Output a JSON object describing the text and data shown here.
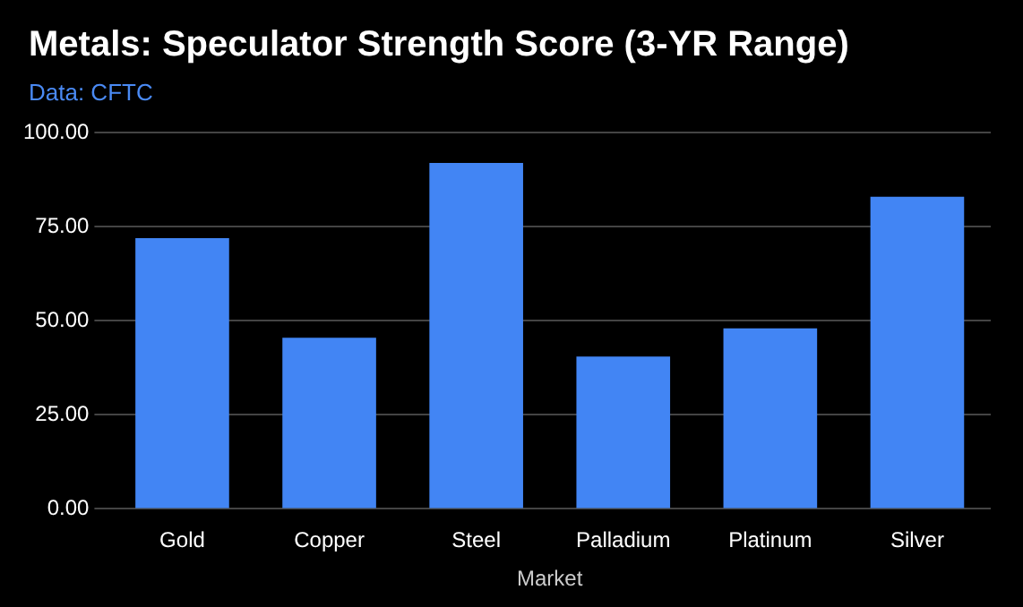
{
  "chart_data": {
    "type": "bar",
    "title": "Metals: Speculator Strength Score (3-YR Range)",
    "subtitle": "Data: CFTC",
    "xlabel": "Market",
    "categories": [
      "Gold",
      "Copper",
      "Steel",
      "Palladium",
      "Platinum",
      "Silver"
    ],
    "series": [
      {
        "color": "#4285f4",
        "values": [
          72,
          45.5,
          92,
          40.5,
          48,
          83
        ]
      }
    ],
    "ylim": [
      0,
      100
    ],
    "yticks": [
      {
        "value": 0,
        "label": "0.00"
      },
      {
        "value": 25,
        "label": "25.00"
      },
      {
        "value": 50,
        "label": "50.00"
      },
      {
        "value": 75,
        "label": "75.00"
      },
      {
        "value": 100,
        "label": "100.00"
      }
    ],
    "grid": "y",
    "legend": false
  }
}
